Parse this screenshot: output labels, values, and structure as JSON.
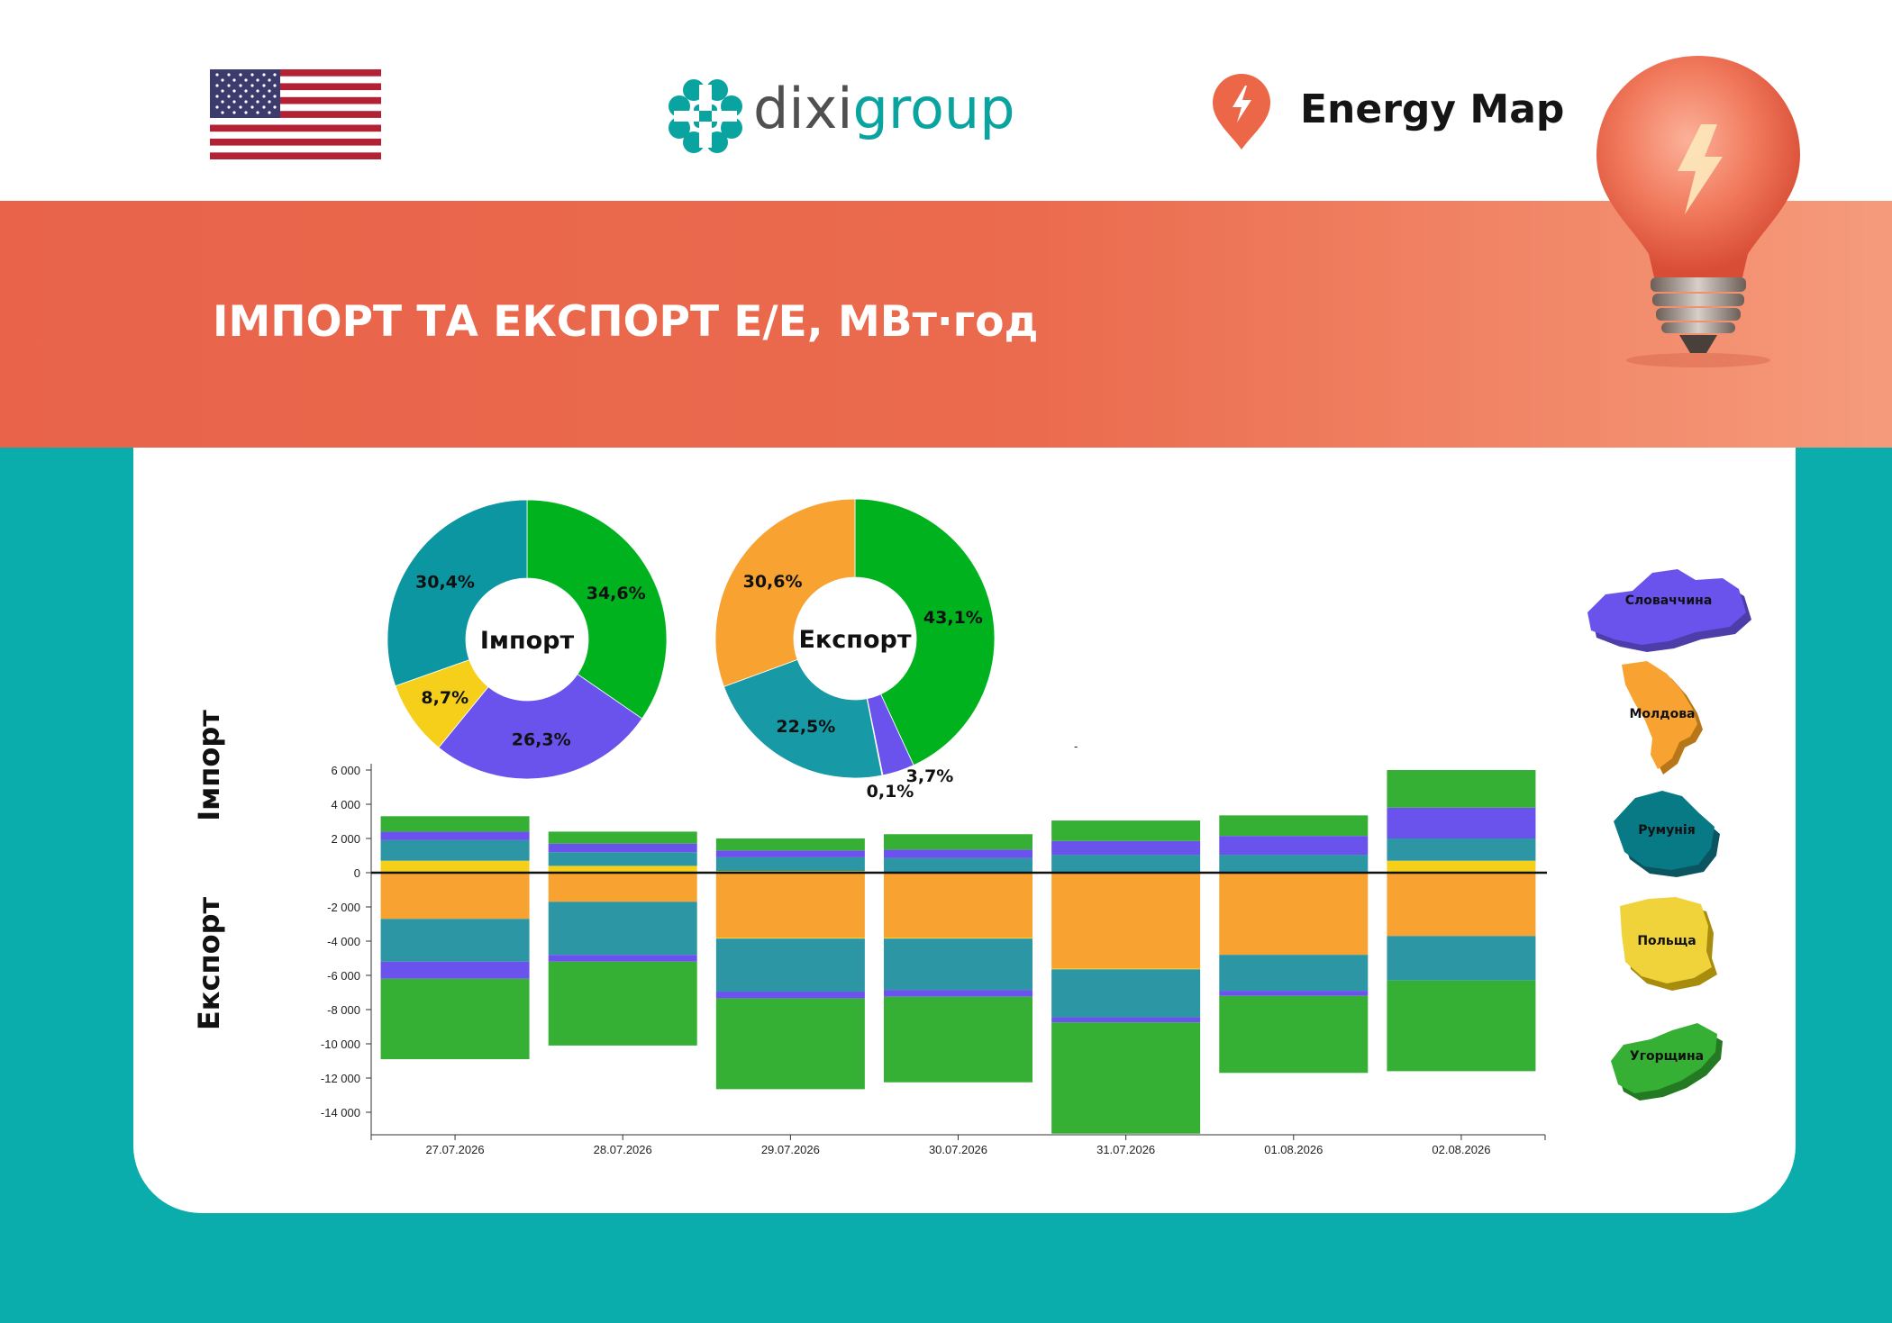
{
  "header": {
    "flag_icon": "us-flag-icon",
    "dixi": {
      "brand_a": "dixi",
      "brand_b": "group"
    },
    "energy_map": {
      "label": "Energy Map"
    }
  },
  "banner": {
    "title": "ІМПОРТ ТА ЕКСПОРТ Е/Е, МВт·год"
  },
  "colors": {
    "Словаччина": "#6a52ec",
    "Молдова": "#f8a331",
    "Румунія": "#2d96a4",
    "Польща": "#f5cf1a",
    "Угорщина": "#36b034",
    "import_green": "#00b21e",
    "import_teal": "#0c96a1",
    "export_teal": "#1899a6"
  },
  "countries": [
    {
      "name": "Словаччина",
      "icon": "slovakia-map-icon"
    },
    {
      "name": "Молдова",
      "icon": "moldova-map-icon"
    },
    {
      "name": "Румунія",
      "icon": "romania-map-icon"
    },
    {
      "name": "Польща",
      "icon": "poland-map-icon"
    },
    {
      "name": "Угорщина",
      "icon": "hungary-map-icon"
    }
  ],
  "chart_data": [
    {
      "type": "pie",
      "donut": true,
      "center_label": "Імпорт",
      "slices": [
        {
          "country": "Угорщина",
          "value": 34.6,
          "label": "34,6%"
        },
        {
          "country": "Словаччина",
          "value": 26.3,
          "label": "26,3%"
        },
        {
          "country": "Польща",
          "value": 8.7,
          "label": "8,7%"
        },
        {
          "country": "Румунія",
          "value": 30.4,
          "label": "30,4%"
        }
      ]
    },
    {
      "type": "pie",
      "donut": true,
      "center_label": "Експорт",
      "slices": [
        {
          "country": "Угорщина",
          "value": 43.1,
          "label": "43,1%"
        },
        {
          "country": "Словаччина",
          "value": 3.7,
          "label": "3,7%"
        },
        {
          "country": "Польща",
          "value": 0.1,
          "label": "0,1%"
        },
        {
          "country": "Румунія",
          "value": 22.5,
          "label": "22,5%"
        },
        {
          "country": "Молдова",
          "value": 30.6,
          "label": "30,6%"
        }
      ]
    },
    {
      "type": "bar",
      "stacked": true,
      "categories": [
        "27.07.2026",
        "28.07.2026",
        "29.07.2026",
        "30.07.2026",
        "31.07.2026",
        "01.08.2026",
        "02.08.2026"
      ],
      "ylabel_import": "Імпорт",
      "ylabel_export": "Експорт",
      "ylim": [
        -15000,
        6500
      ],
      "yticks": [
        6000,
        4000,
        2000,
        0,
        -2000,
        -4000,
        -6000,
        -8000,
        -10000,
        -12000,
        -14000
      ],
      "ytick_labels": [
        "6 000",
        "4 000",
        "2 000",
        "0",
        "-2 000",
        "-4 000",
        "-6 000",
        "-8 000",
        "-10 000",
        "-12 000",
        "-14 000"
      ],
      "import_series": [
        {
          "name": "Польща",
          "values": [
            700,
            400,
            100,
            50,
            50,
            50,
            700
          ]
        },
        {
          "name": "Румунія",
          "values": [
            1200,
            800,
            800,
            800,
            1000,
            1000,
            1300
          ]
        },
        {
          "name": "Словаччина",
          "values": [
            500,
            500,
            400,
            500,
            800,
            1100,
            1800
          ]
        },
        {
          "name": "Угорщина",
          "values": [
            900,
            700,
            700,
            900,
            1200,
            1200,
            2200
          ]
        }
      ],
      "export_series": [
        {
          "name": "Молдова",
          "values": [
            -2700,
            -1700,
            -3800,
            -3800,
            -5600,
            -4800,
            -3700
          ]
        },
        {
          "name": "Польща",
          "values": [
            0,
            0,
            -50,
            -50,
            -50,
            0,
            0
          ]
        },
        {
          "name": "Румунія",
          "values": [
            -2500,
            -3100,
            -3100,
            -3000,
            -2800,
            -2100,
            -2600
          ]
        },
        {
          "name": "Словаччина",
          "values": [
            -1000,
            -400,
            -400,
            -400,
            -300,
            -300,
            0
          ]
        },
        {
          "name": "Угорщина",
          "values": [
            -4700,
            -4900,
            -5300,
            -5000,
            -6500,
            -4500,
            -5300
          ]
        }
      ],
      "extra_mark": "-"
    }
  ]
}
